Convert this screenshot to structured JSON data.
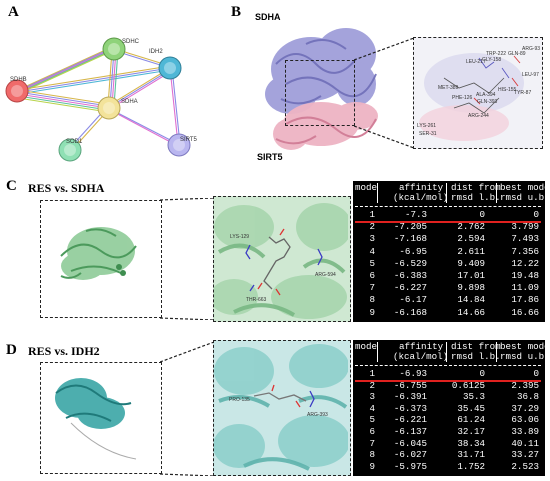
{
  "panels": {
    "a": "A",
    "b": "B",
    "c": "C",
    "d": "D"
  },
  "network": {
    "nodes": [
      {
        "id": "sdhb",
        "label": "SDHB",
        "color": "#f06a6a"
      },
      {
        "id": "sdhc",
        "label": "SDHC",
        "color": "#8fd37a"
      },
      {
        "id": "idh2",
        "label": "IDH2",
        "color": "#4fb7d6"
      },
      {
        "id": "sdha",
        "label": "SDHA",
        "color": "#f3e39a"
      },
      {
        "id": "sod1",
        "label": "SOD1",
        "color": "#8fe0b4"
      },
      {
        "id": "sirt5",
        "label": "SIRT5",
        "color": "#b9b6ef"
      }
    ]
  },
  "panel_b": {
    "label_top": "SDHA",
    "label_bottom": "SIRT5",
    "zoom_residues": [
      "ARG-93",
      "TRP-222",
      "GLN-89",
      "LEU-217",
      "GLY-158",
      "LEU-97",
      "HIS-155",
      "MET-389",
      "ALA-394",
      "GLN-393",
      "TYR-87",
      "PHE-126",
      "ARG-244",
      "LYS-261",
      "SER-31"
    ]
  },
  "panel_c": {
    "title": "RES vs. SDHA",
    "residues": [
      "LYS-129",
      "ARG-594",
      "THR-663"
    ]
  },
  "panel_d": {
    "title": "RES vs. IDH2",
    "residues": [
      "PRO-135",
      "ARG-393"
    ]
  },
  "docking_table_c": {
    "headers": {
      "line1": [
        "mode",
        "affinity",
        "dist from",
        "best mode"
      ],
      "line2": [
        "",
        "(kcal/mol)",
        "rmsd l.b.",
        "rmsd u.b."
      ]
    },
    "rows": [
      [
        "1",
        "-7.3",
        "0",
        "0"
      ],
      [
        "2",
        "-7.205",
        "2.762",
        "3.799"
      ],
      [
        "3",
        "-7.168",
        "2.594",
        "7.493"
      ],
      [
        "4",
        "-6.95",
        "2.611",
        "7.356"
      ],
      [
        "5",
        "-6.529",
        "9.409",
        "12.22"
      ],
      [
        "6",
        "-6.383",
        "17.01",
        "19.48"
      ],
      [
        "7",
        "-6.227",
        "9.898",
        "11.09"
      ],
      [
        "8",
        "-6.17",
        "14.84",
        "17.86"
      ],
      [
        "9",
        "-6.168",
        "14.66",
        "16.66"
      ]
    ]
  },
  "docking_table_d": {
    "headers": {
      "line1": [
        "mode",
        "affinity",
        "dist from",
        "best mode"
      ],
      "line2": [
        "",
        "(kcal/mol)",
        "rmsd l.b.",
        "rmsd u.b."
      ]
    },
    "rows": [
      [
        "1",
        "-6.93",
        "0",
        "0"
      ],
      [
        "2",
        "-6.755",
        "0.6125",
        "2.395"
      ],
      [
        "3",
        "-6.391",
        "35.3",
        "36.8"
      ],
      [
        "4",
        "-6.373",
        "35.45",
        "37.29"
      ],
      [
        "5",
        "-6.221",
        "61.24",
        "63.06"
      ],
      [
        "6",
        "-6.137",
        "32.17",
        "33.89"
      ],
      [
        "7",
        "-6.045",
        "38.34",
        "40.11"
      ],
      [
        "8",
        "-6.027",
        "31.71",
        "33.27"
      ],
      [
        "9",
        "-5.975",
        "1.752",
        "2.523"
      ]
    ]
  }
}
